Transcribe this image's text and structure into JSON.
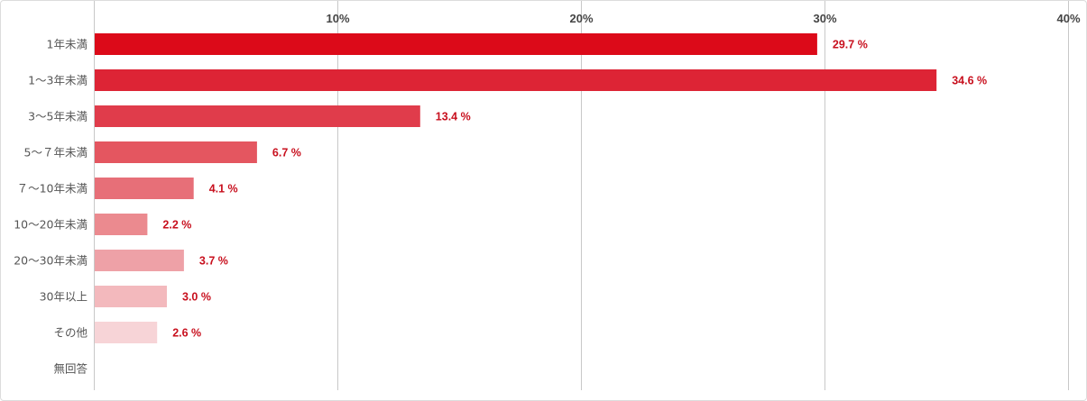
{
  "chart_data": {
    "type": "bar",
    "orientation": "horizontal",
    "categories": [
      "1年未満",
      "1～3年未満",
      "3～5年未満",
      "5～７年未満",
      "７～10年未満",
      "10～20年未満",
      "20～30年未満",
      "30年以上",
      "その他",
      "無回答"
    ],
    "values": [
      29.7,
      34.6,
      13.4,
      6.7,
      4.1,
      2.2,
      3.7,
      3.0,
      2.6,
      null
    ],
    "value_labels": [
      "29.7 %",
      "34.6 %",
      "13.4 %",
      "6.7 %",
      "4.1 %",
      "2.2 %",
      "3.7 %",
      "3.0 %",
      "2.6 %",
      ""
    ],
    "bar_colors": [
      "#dc0a19",
      "#dd2435",
      "#e03c4b",
      "#e45660",
      "#e76f78",
      "#eb8a8f",
      "#eea1a7",
      "#f3b9bd",
      "#f7d4d7",
      "#ffffff"
    ],
    "label_color": "#c8101e",
    "x_ticks": [
      10,
      20,
      30,
      40
    ],
    "x_tick_labels": [
      "10%",
      "20%",
      "30%",
      "40%"
    ],
    "xlim": [
      0,
      40
    ],
    "xaxis_position": "top",
    "grid": true,
    "title": "",
    "xlabel": "",
    "ylabel": ""
  }
}
